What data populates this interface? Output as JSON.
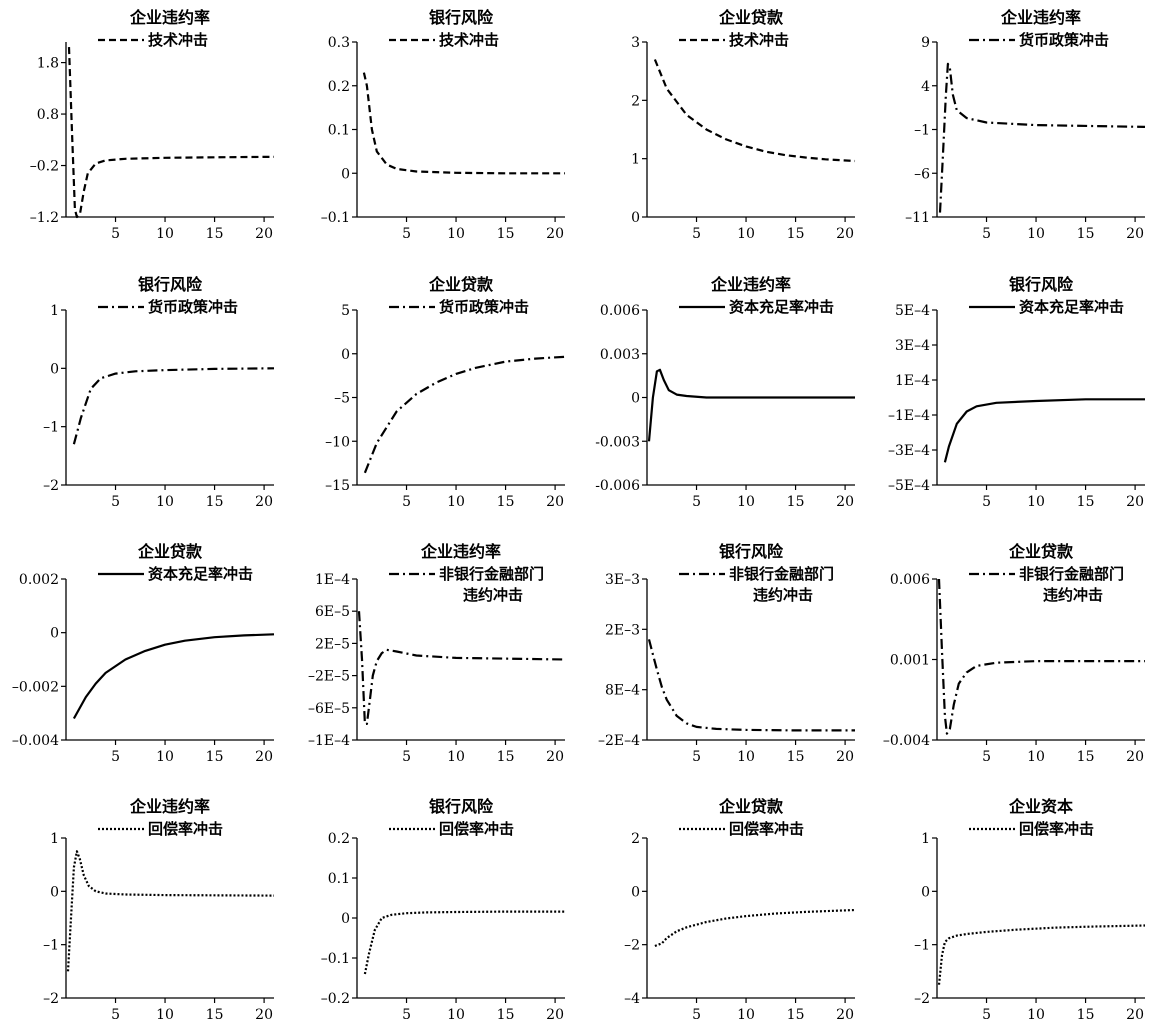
{
  "chart_data": [
    {
      "type": "line",
      "title": "企业违约率",
      "legend": [
        "技术冲击"
      ],
      "style": "dashed",
      "ylim": [
        -1.2,
        2.2
      ],
      "yticks": [
        1.8,
        0.8,
        -0.2,
        -1.2
      ],
      "xticks": [
        5,
        10,
        15,
        20
      ],
      "xlim": [
        0,
        21
      ],
      "series": [
        {
          "name": "技术冲击",
          "x": [
            0.3,
            0.6,
            0.9,
            1.1,
            1.4,
            1.8,
            2.2,
            3,
            4,
            6,
            10,
            15,
            21
          ],
          "values": [
            2.1,
            0.5,
            -1.05,
            -1.2,
            -1.15,
            -0.7,
            -0.35,
            -0.16,
            -0.1,
            -0.07,
            -0.05,
            -0.04,
            -0.03
          ]
        }
      ]
    },
    {
      "type": "line",
      "title": "银行风险",
      "legend": [
        "技术冲击"
      ],
      "style": "dashed",
      "ylim": [
        -0.1,
        0.3
      ],
      "yticks": [
        0.3,
        0.2,
        0.1,
        0,
        -0.1
      ],
      "xticks": [
        5,
        10,
        15,
        20
      ],
      "xlim": [
        0,
        21
      ],
      "series": [
        {
          "name": "技术冲击",
          "x": [
            0.7,
            1,
            1.5,
            2,
            3,
            4,
            6,
            10,
            15,
            21
          ],
          "values": [
            0.23,
            0.2,
            0.1,
            0.05,
            0.02,
            0.01,
            0.004,
            0.001,
            0,
            0
          ]
        }
      ]
    },
    {
      "type": "line",
      "title": "企业贷款",
      "legend": [
        "技术冲击"
      ],
      "style": "dashed",
      "ylim": [
        0,
        3
      ],
      "yticks": [
        3,
        2,
        1,
        0
      ],
      "xticks": [
        5,
        10,
        15,
        20
      ],
      "xlim": [
        0,
        21
      ],
      "series": [
        {
          "name": "技术冲击",
          "x": [
            0.8,
            2,
            4,
            6,
            8,
            10,
            12,
            14,
            16,
            18,
            21
          ],
          "values": [
            2.7,
            2.2,
            1.75,
            1.5,
            1.33,
            1.21,
            1.12,
            1.06,
            1.02,
            0.99,
            0.96
          ]
        }
      ]
    },
    {
      "type": "line",
      "title": "企业违约率",
      "legend": [
        "货币政策冲击"
      ],
      "style": "dashdot",
      "ylim": [
        -11,
        9
      ],
      "yticks": [
        9,
        4,
        -1,
        -6,
        -11
      ],
      "xticks": [
        5,
        10,
        15,
        20
      ],
      "xlim": [
        0,
        21
      ],
      "series": [
        {
          "name": "货币政策冲击",
          "x": [
            0.3,
            0.6,
            0.9,
            1.1,
            1.3,
            1.6,
            2,
            3,
            5,
            10,
            21
          ],
          "values": [
            -10.5,
            -4,
            3,
            6.5,
            6,
            3,
            1.2,
            0.3,
            -0.2,
            -0.5,
            -0.7
          ]
        }
      ]
    },
    {
      "type": "line",
      "title": "银行风险",
      "legend": [
        "货币政策冲击"
      ],
      "style": "dashdot",
      "ylim": [
        -2,
        1
      ],
      "yticks": [
        1,
        0,
        -1,
        -2
      ],
      "xticks": [
        5,
        10,
        15,
        20
      ],
      "xlim": [
        0,
        21
      ],
      "series": [
        {
          "name": "货币政策冲击",
          "x": [
            0.8,
            1.5,
            2.5,
            3.5,
            5,
            7,
            10,
            15,
            21
          ],
          "values": [
            -1.3,
            -0.85,
            -0.35,
            -0.17,
            -0.09,
            -0.05,
            -0.03,
            -0.01,
            0
          ]
        }
      ]
    },
    {
      "type": "line",
      "title": "企业贷款",
      "legend": [
        "货币政策冲击"
      ],
      "style": "dashdot",
      "ylim": [
        -15,
        5
      ],
      "yticks": [
        5,
        0,
        -5,
        -10,
        -15
      ],
      "xticks": [
        5,
        10,
        15,
        20
      ],
      "xlim": [
        0,
        21
      ],
      "series": [
        {
          "name": "货币政策冲击",
          "x": [
            0.8,
            2,
            4,
            6,
            8,
            10,
            12,
            15,
            18,
            21
          ],
          "values": [
            -13.6,
            -10.2,
            -6.6,
            -4.6,
            -3.3,
            -2.3,
            -1.6,
            -0.9,
            -0.55,
            -0.35
          ]
        }
      ]
    },
    {
      "type": "line",
      "title": "企业违约率",
      "legend": [
        "资本充足率冲击"
      ],
      "style": "solid",
      "ylim": [
        -0.006,
        0.006
      ],
      "yticks": [
        0.006,
        0.003,
        0,
        -0.003,
        -0.006
      ],
      "ytick_labels": [
        "0.006",
        "0.003",
        "0",
        "-0.003",
        "-0.006"
      ],
      "xticks": [
        5,
        10,
        15,
        20
      ],
      "xlim": [
        0,
        21
      ],
      "series": [
        {
          "name": "资本充足率冲击",
          "x": [
            0.2,
            0.6,
            1,
            1.3,
            1.7,
            2.2,
            3,
            4,
            6,
            10,
            21
          ],
          "values": [
            -0.003,
            0,
            0.0018,
            0.0019,
            0.0012,
            0.0005,
            0.0002,
            0.0001,
            0,
            0,
            0
          ]
        }
      ]
    },
    {
      "type": "line",
      "title": "银行风险",
      "legend": [
        "资本充足率冲击"
      ],
      "style": "solid",
      "ylim": [
        -0.0005,
        0.0005
      ],
      "yticks": [
        0.0005,
        0.0003,
        0.0001,
        -0.0001,
        -0.0003,
        -0.0005
      ],
      "ytick_labels": [
        "5E–4",
        "3E–4",
        "1E–4",
        "–1E–4",
        "–3E–4",
        "–5E–4"
      ],
      "xticks": [
        5,
        10,
        15,
        20
      ],
      "xlim": [
        0,
        21
      ],
      "series": [
        {
          "name": "资本充足率冲击",
          "x": [
            0.8,
            1.2,
            2,
            3,
            4,
            6,
            10,
            15,
            21
          ],
          "values": [
            -0.00037,
            -0.00028,
            -0.00015,
            -8e-05,
            -5e-05,
            -3e-05,
            -2e-05,
            -1e-05,
            -1e-05
          ]
        }
      ]
    },
    {
      "type": "line",
      "title": "企业贷款",
      "legend": [
        "资本充足率冲击"
      ],
      "style": "solid",
      "ylim": [
        -0.004,
        0.002
      ],
      "yticks": [
        0.002,
        0,
        -0.002,
        -0.004
      ],
      "ytick_labels": [
        "0.002",
        "0",
        "–0.002",
        "–0.004"
      ],
      "xticks": [
        5,
        10,
        15,
        20
      ],
      "xlim": [
        0,
        21
      ],
      "series": [
        {
          "name": "资本充足率冲击",
          "x": [
            0.8,
            2,
            3,
            4,
            6,
            8,
            10,
            12,
            15,
            18,
            21
          ],
          "values": [
            -0.0032,
            -0.0024,
            -0.0019,
            -0.0015,
            -0.001,
            -0.00068,
            -0.00045,
            -0.0003,
            -0.00017,
            -0.0001,
            -6e-05
          ]
        }
      ]
    },
    {
      "type": "line",
      "title": "企业违约率",
      "legend": [
        "非银行金融部门",
        "违约冲击"
      ],
      "style": "dashdot",
      "ylim": [
        -0.0001,
        0.0001
      ],
      "yticks": [
        0.0001,
        6e-05,
        2e-05,
        -2e-05,
        -6e-05,
        -0.0001
      ],
      "ytick_labels": [
        "1E–4",
        "6E–5",
        "2E–5",
        "–2E–5",
        "–6E–5",
        "–1E–4"
      ],
      "xticks": [
        5,
        10,
        15,
        20
      ],
      "xlim": [
        0,
        21
      ],
      "series": [
        {
          "name": "非银行金融部门违约冲击",
          "x": [
            0.2,
            0.5,
            0.8,
            1,
            1.3,
            1.6,
            2,
            2.5,
            3,
            4,
            6,
            10,
            21
          ],
          "values": [
            6e-05,
            0,
            -8e-05,
            -8e-05,
            -5e-05,
            -2e-05,
            -2e-06,
            8e-06,
            1.2e-05,
            1e-05,
            5e-06,
            2e-06,
            0
          ]
        }
      ]
    },
    {
      "type": "line",
      "title": "银行风险",
      "legend": [
        "非银行金融部门",
        "违约冲击"
      ],
      "style": "dashdot",
      "ylim": [
        -0.0002,
        0.003
      ],
      "yticks": [
        0.003,
        0.002,
        0.0008,
        -0.0002
      ],
      "ytick_labels": [
        "3E–3",
        "2E–3",
        "8E–4",
        "–2E–4"
      ],
      "xticks": [
        5,
        10,
        15,
        20
      ],
      "xlim": [
        0,
        21
      ],
      "series": [
        {
          "name": "非银行金融部门违约冲击",
          "x": [
            0.2,
            0.6,
            1,
            1.5,
            2,
            3,
            4,
            5,
            7,
            10,
            15,
            21
          ],
          "values": [
            0.0018,
            0.0015,
            0.0012,
            0.00085,
            0.0006,
            0.00028,
            0.00013,
            6e-05,
            2e-05,
            0,
            -1e-05,
            -1e-05
          ]
        }
      ]
    },
    {
      "type": "line",
      "title": "企业贷款",
      "legend": [
        "非银行金融部门",
        "违约冲击"
      ],
      "style": "dashdot",
      "ylim": [
        -0.004,
        0.006
      ],
      "yticks": [
        0.006,
        0.001,
        -0.004
      ],
      "ytick_labels": [
        "0.006",
        "0.001",
        "–0.004"
      ],
      "xticks": [
        5,
        10,
        15,
        20
      ],
      "xlim": [
        0,
        21
      ],
      "series": [
        {
          "name": "非银行金融部门违约冲击",
          "x": [
            0.2,
            0.5,
            0.8,
            1,
            1.3,
            1.7,
            2.2,
            3,
            4,
            6,
            10,
            15,
            21
          ],
          "values": [
            0.006,
            0.0015,
            -0.0025,
            -0.0036,
            -0.0033,
            -0.0018,
            -0.0005,
            0.0002,
            0.0006,
            0.0008,
            0.0009,
            0.0009,
            0.0009
          ]
        }
      ]
    },
    {
      "type": "line",
      "title": "企业违约率",
      "legend": [
        "回偿率冲击"
      ],
      "style": "dotted",
      "ylim": [
        -2,
        1
      ],
      "yticks": [
        1,
        0,
        -1,
        -2
      ],
      "xticks": [
        5,
        10,
        15,
        20
      ],
      "xlim": [
        0,
        21
      ],
      "series": [
        {
          "name": "回偿率冲击",
          "x": [
            0.2,
            0.5,
            0.8,
            1.1,
            1.4,
            1.8,
            2.3,
            3,
            4,
            6,
            10,
            21
          ],
          "values": [
            -1.5,
            -0.5,
            0.45,
            0.75,
            0.6,
            0.3,
            0.1,
            0,
            -0.04,
            -0.06,
            -0.07,
            -0.08
          ]
        }
      ]
    },
    {
      "type": "line",
      "title": "银行风险",
      "legend": [
        "回偿率冲击"
      ],
      "style": "dotted",
      "ylim": [
        -0.2,
        0.2
      ],
      "yticks": [
        0.2,
        0.1,
        0,
        -0.1,
        -0.2
      ],
      "xticks": [
        5,
        10,
        15,
        20
      ],
      "xlim": [
        0,
        21
      ],
      "series": [
        {
          "name": "回偿率冲击",
          "x": [
            0.8,
            1.2,
            1.8,
            2.5,
            3.5,
            5,
            7,
            10,
            15,
            21
          ],
          "values": [
            -0.14,
            -0.09,
            -0.03,
            0,
            0.008,
            0.012,
            0.014,
            0.015,
            0.016,
            0.016
          ]
        }
      ]
    },
    {
      "type": "line",
      "title": "企业贷款",
      "legend": [
        "回偿率冲击"
      ],
      "style": "dotted",
      "ylim": [
        -4,
        2
      ],
      "yticks": [
        2,
        0,
        -2,
        -4
      ],
      "xticks": [
        5,
        10,
        15,
        20
      ],
      "xlim": [
        0,
        21
      ],
      "series": [
        {
          "name": "回偿率冲击",
          "x": [
            0.8,
            1.5,
            2,
            3,
            4,
            6,
            8,
            10,
            13,
            16,
            21
          ],
          "values": [
            -2.05,
            -1.95,
            -1.75,
            -1.5,
            -1.35,
            -1.15,
            -1.02,
            -0.93,
            -0.83,
            -0.77,
            -0.7
          ]
        }
      ]
    },
    {
      "type": "line",
      "title": "企业资本",
      "legend": [
        "回偿率冲击"
      ],
      "style": "dotted",
      "ylim": [
        -2,
        1
      ],
      "yticks": [
        1,
        0,
        -1,
        -2
      ],
      "xticks": [
        5,
        10,
        15,
        20
      ],
      "xlim": [
        0,
        21
      ],
      "series": [
        {
          "name": "回偿率冲击",
          "x": [
            0.2,
            0.5,
            0.8,
            1.2,
            2,
            3,
            5,
            8,
            12,
            16,
            21
          ],
          "values": [
            -1.75,
            -1.2,
            -0.95,
            -0.88,
            -0.83,
            -0.8,
            -0.76,
            -0.72,
            -0.68,
            -0.66,
            -0.64
          ]
        }
      ]
    }
  ]
}
